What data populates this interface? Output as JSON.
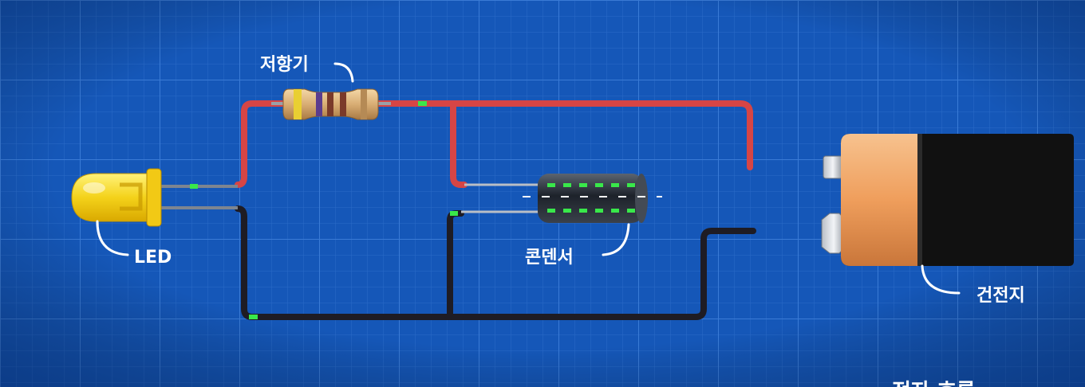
{
  "labels": {
    "resistor": "저항기",
    "led": "LED",
    "capacitor": "콘덴서",
    "battery": "건전지",
    "bottom_partial": "전자 흐름"
  },
  "colors": {
    "background": "#1557b8",
    "grid_minor": "#2a6bc8",
    "grid_major": "#3a7bd6",
    "wire_positive": "#d64545",
    "wire_negative": "#1e1c24",
    "electron_dot": "#39e84a",
    "led_body": "#f4d21a",
    "battery_copper": "#f0a868",
    "battery_black": "#111111"
  },
  "icons": [
    "led-icon",
    "resistor-icon",
    "capacitor-icon",
    "battery-icon"
  ]
}
